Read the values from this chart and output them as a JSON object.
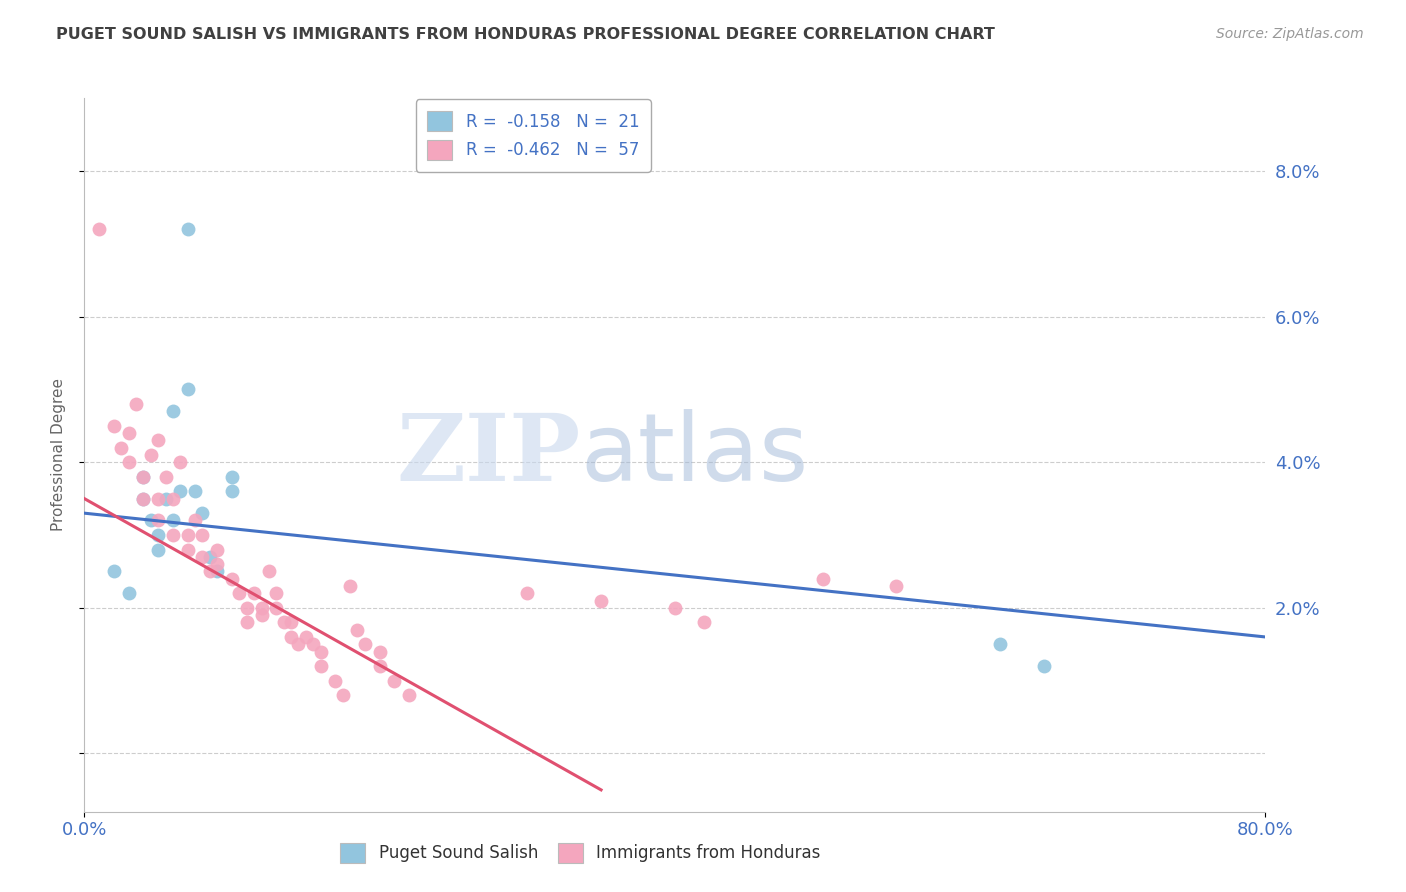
{
  "title": "PUGET SOUND SALISH VS IMMIGRANTS FROM HONDURAS PROFESSIONAL DEGREE CORRELATION CHART",
  "source": "Source: ZipAtlas.com",
  "ylabel": "Professional Degree",
  "ytick_values": [
    0.0,
    2.0,
    4.0,
    6.0,
    8.0
  ],
  "ytick_labels": [
    "",
    "2.0%",
    "4.0%",
    "6.0%",
    "8.0%"
  ],
  "xtick_values": [
    0,
    80
  ],
  "xtick_labels": [
    "0.0%",
    "80.0%"
  ],
  "xlim": [
    0.0,
    80.0
  ],
  "ylim": [
    -0.8,
    9.0
  ],
  "legend_blue_label": "Puget Sound Salish",
  "legend_pink_label": "Immigrants from Honduras",
  "legend_r_blue": "R =  -0.158",
  "legend_n_blue": "N =  21",
  "legend_r_pink": "R =  -0.462",
  "legend_n_pink": "N =  57",
  "blue_color": "#92c5de",
  "pink_color": "#f4a6be",
  "blue_line_color": "#4472c4",
  "pink_line_color": "#e05070",
  "watermark_zip": "ZIP",
  "watermark_atlas": "atlas",
  "background_color": "#ffffff",
  "grid_color": "#c8c8c8",
  "title_color": "#404040",
  "axis_label_color": "#4472c4",
  "blue_x": [
    2.0,
    3.0,
    4.0,
    4.0,
    4.5,
    5.0,
    5.0,
    5.5,
    6.0,
    6.0,
    6.5,
    7.0,
    7.0,
    7.5,
    8.0,
    8.5,
    9.0,
    10.0,
    10.0,
    62.0,
    65.0
  ],
  "blue_y": [
    2.5,
    2.2,
    3.5,
    3.8,
    3.2,
    3.0,
    2.8,
    3.5,
    3.2,
    4.7,
    3.6,
    5.0,
    7.2,
    3.6,
    3.3,
    2.7,
    2.5,
    3.6,
    3.8,
    1.5,
    1.2
  ],
  "pink_x": [
    1.0,
    2.0,
    2.5,
    3.0,
    3.0,
    3.5,
    4.0,
    4.0,
    4.5,
    5.0,
    5.0,
    5.0,
    5.5,
    6.0,
    6.0,
    6.5,
    7.0,
    7.0,
    7.5,
    8.0,
    8.0,
    8.5,
    9.0,
    9.0,
    10.0,
    10.5,
    11.0,
    11.0,
    11.5,
    12.0,
    12.0,
    12.5,
    13.0,
    13.0,
    13.5,
    14.0,
    14.0,
    14.5,
    15.0,
    15.5,
    16.0,
    16.0,
    17.0,
    17.5,
    18.0,
    18.5,
    19.0,
    20.0,
    20.0,
    21.0,
    22.0,
    30.0,
    35.0,
    40.0,
    42.0,
    50.0,
    55.0
  ],
  "pink_y": [
    7.2,
    4.5,
    4.2,
    4.4,
    4.0,
    4.8,
    3.8,
    3.5,
    4.1,
    3.5,
    3.2,
    4.3,
    3.8,
    3.0,
    3.5,
    4.0,
    3.0,
    2.8,
    3.2,
    2.7,
    3.0,
    2.5,
    2.8,
    2.6,
    2.4,
    2.2,
    2.0,
    1.8,
    2.2,
    1.9,
    2.0,
    2.5,
    2.0,
    2.2,
    1.8,
    1.6,
    1.8,
    1.5,
    1.6,
    1.5,
    1.4,
    1.2,
    1.0,
    0.8,
    2.3,
    1.7,
    1.5,
    1.4,
    1.2,
    1.0,
    0.8,
    2.2,
    2.1,
    2.0,
    1.8,
    2.4,
    2.3
  ],
  "blue_line_x0": 0.0,
  "blue_line_y0": 3.3,
  "blue_line_x1": 80.0,
  "blue_line_y1": 1.6,
  "pink_line_x0": 0.0,
  "pink_line_y0": 3.5,
  "pink_line_x1": 35.0,
  "pink_line_y1": -0.5
}
